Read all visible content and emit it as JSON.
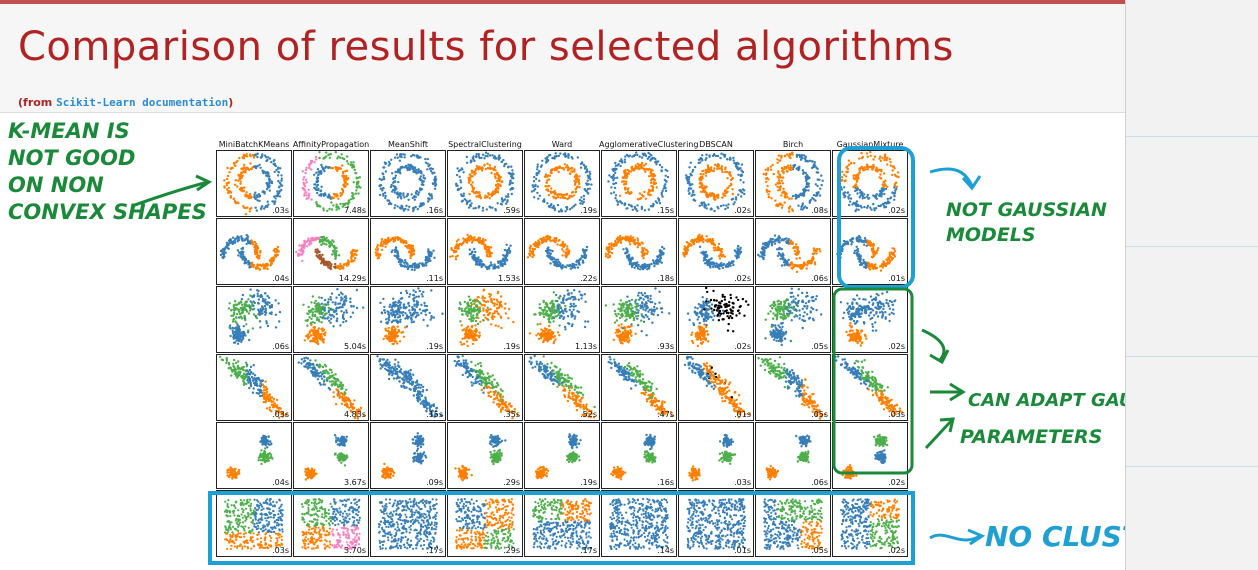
{
  "slide": {
    "title": "Comparison of results for selected algorithms",
    "subtitle_prefix": "(from ",
    "subtitle_source": "Scikit-Learn documentation",
    "subtitle_suffix": ")"
  },
  "grid": {
    "algorithms": [
      "MiniBatchKMeans",
      "AffinityPropagation",
      "MeanShift",
      "SpectralClustering",
      "Ward",
      "AgglomerativeClustering",
      "DBSCAN",
      "Birch",
      "GaussianMixture"
    ],
    "rows": [
      {
        "type": "circles",
        "times": [
          ".03s",
          "7.48s",
          ".16s",
          ".59s",
          ".19s",
          ".15s",
          ".02s",
          ".08s",
          ".02s"
        ]
      },
      {
        "type": "moons",
        "times": [
          ".04s",
          "14.29s",
          ".11s",
          "1.53s",
          ".22s",
          ".18s",
          ".02s",
          ".06s",
          ".01s"
        ]
      },
      {
        "type": "varied",
        "times": [
          ".06s",
          "5.04s",
          ".19s",
          ".19s",
          "1.13s",
          ".93s",
          ".02s",
          ".05s",
          ".02s"
        ]
      },
      {
        "type": "aniso",
        "times": [
          ".03s",
          "4.83s",
          ".15s",
          ".35s",
          ".52s",
          ".47s",
          ".01s",
          ".05s",
          ".03s"
        ]
      },
      {
        "type": "blobs",
        "times": [
          ".04s",
          "3.67s",
          ".09s",
          ".29s",
          ".19s",
          ".16s",
          ".03s",
          ".06s",
          ".02s"
        ]
      },
      {
        "type": "uniform",
        "times": [
          ".03s",
          "3.70s",
          ".17s",
          ".29s",
          ".17s",
          ".14s",
          ".01s",
          ".05s",
          ".02s"
        ]
      }
    ]
  },
  "annotations": {
    "kmean_lines": [
      "K-MEAN IS",
      "NOT GOOD",
      "ON NON",
      "CONVEX SHAPES"
    ],
    "not_gaussian_lines": [
      "NOT GAUSSIAN",
      "MODELS"
    ],
    "can_adapt": "CAN ADAPT GAUSSIAN",
    "parameters": "PARAMETERS",
    "no_clusters": "NO CLUSTERS"
  },
  "colors": {
    "blue": "#377eb8",
    "orange": "#ff7f00",
    "green": "#4daf4a",
    "pink": "#f781bf",
    "brown": "#a65628",
    "black": "#000000",
    "annotation_green": "#1a8a3a",
    "annotation_blue": "#1ea0d4"
  }
}
